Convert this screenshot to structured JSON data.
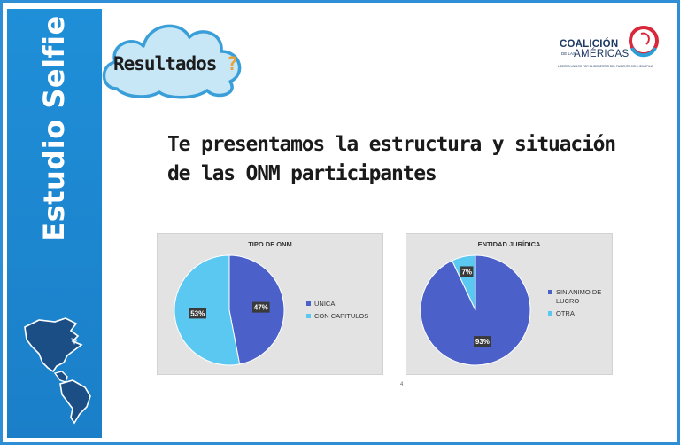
{
  "sidebar": {
    "title": "Estudio Selfie"
  },
  "cloud": {
    "label": "Resultados",
    "mark": "?"
  },
  "logo": {
    "name": "COALICIÓN",
    "sub_small": "DE LAS",
    "sub_big": "AMÉRICAS",
    "tagline": "LÍDERES UNIDOS POR EL BIENESTAR DEL PACIENTE CON HEMOFILIA"
  },
  "headline": {
    "line1": "Te presentamos la estructura y situación",
    "line2": "de las ONM participantes"
  },
  "page_number": "4",
  "colors": {
    "sidebar": "#1f8fd8",
    "blue": "#4b61c9",
    "light_blue": "#5bc8f2",
    "cloud": "#c7e7f6"
  },
  "chart_data": [
    {
      "type": "pie",
      "title": "TIPO DE ONM",
      "categories": [
        "UNICA",
        "CON CAPITULOS"
      ],
      "values": [
        47,
        53
      ],
      "data_labels": [
        "47%",
        "53%"
      ],
      "colors": [
        "#4b61c9",
        "#5bc8f2"
      ],
      "legend": "right"
    },
    {
      "type": "pie",
      "title": "ENTIDAD JURÍDICA",
      "categories": [
        "SIN ANIMO DE LUCRO",
        "OTRA"
      ],
      "legend_lines": [
        [
          "SIN ANIMO DE",
          "LUCRO"
        ],
        [
          "OTRA"
        ]
      ],
      "values": [
        93,
        7
      ],
      "data_labels": [
        "93%",
        "7%"
      ],
      "colors": [
        "#4b61c9",
        "#5bc8f2"
      ],
      "legend": "right"
    }
  ]
}
